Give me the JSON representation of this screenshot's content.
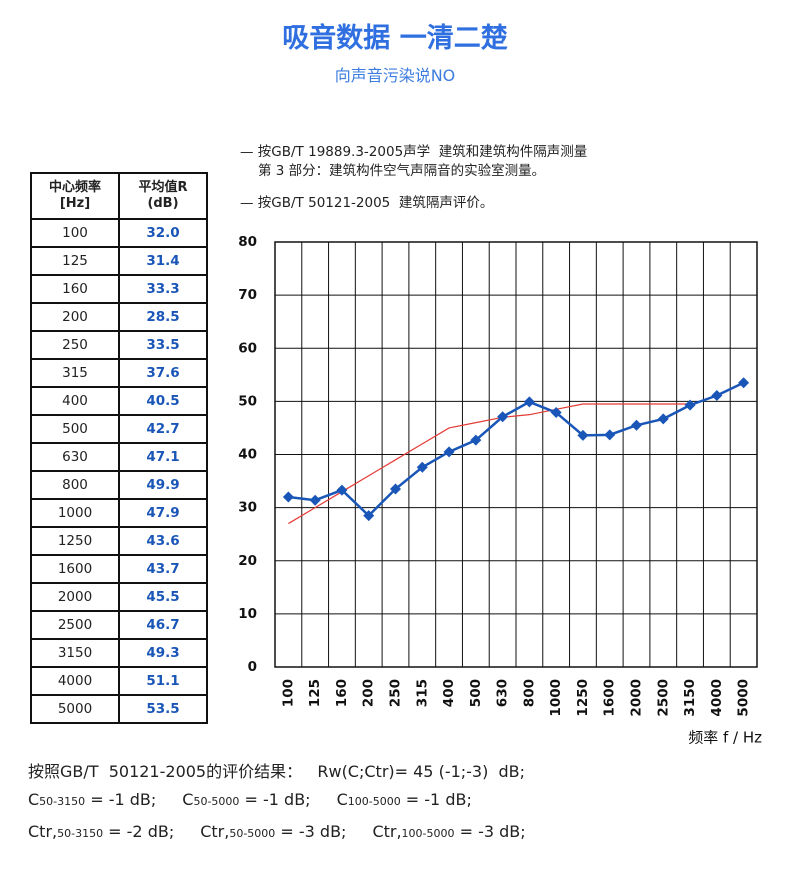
{
  "header": {
    "title": "吸音数据 一清二楚",
    "subtitle": "向声音污染说NO"
  },
  "notes": [
    "— 按GB/T 19889.3-2005声学  建筑和建筑构件隔声测量",
    "第 3 部分：建筑构件空气声隔音的实验室测量。",
    "— 按GB/T 50121-2005  建筑隔声评价。"
  ],
  "table": {
    "headers": [
      "中心频率\n[Hz]",
      "平均值R\n(dB)"
    ],
    "rows": [
      [
        "100",
        "32.0"
      ],
      [
        "125",
        "31.4"
      ],
      [
        "160",
        "33.3"
      ],
      [
        "200",
        "28.5"
      ],
      [
        "250",
        "33.5"
      ],
      [
        "315",
        "37.6"
      ],
      [
        "400",
        "40.5"
      ],
      [
        "500",
        "42.7"
      ],
      [
        "630",
        "47.1"
      ],
      [
        "800",
        "49.9"
      ],
      [
        "1000",
        "47.9"
      ],
      [
        "1250",
        "43.6"
      ],
      [
        "1600",
        "43.7"
      ],
      [
        "2000",
        "45.5"
      ],
      [
        "2500",
        "46.7"
      ],
      [
        "3150",
        "49.3"
      ],
      [
        "4000",
        "51.1"
      ],
      [
        "5000",
        "53.5"
      ]
    ]
  },
  "chart_data": {
    "type": "line",
    "x_label": "频率 f / Hz",
    "categories": [
      "100",
      "125",
      "160",
      "200",
      "250",
      "315",
      "400",
      "500",
      "630",
      "800",
      "1000",
      "1250",
      "1600",
      "2000",
      "2500",
      "3150",
      "4000",
      "5000"
    ],
    "series": [
      {
        "color": "#e53935",
        "marker": false,
        "values": [
          27,
          30,
          33,
          36,
          39,
          42,
          45,
          46,
          47,
          47.5,
          48.5,
          49.5,
          49.5,
          49.5,
          49.5,
          49.5,
          null,
          null
        ]
      },
      {
        "color": "#1a56b8",
        "marker": true,
        "values": [
          32.0,
          31.4,
          33.3,
          28.5,
          33.5,
          37.6,
          40.5,
          42.7,
          47.1,
          49.9,
          47.9,
          43.6,
          43.7,
          45.5,
          46.7,
          49.3,
          51.1,
          53.5
        ]
      }
    ],
    "ylim": [
      0,
      80
    ],
    "yticks": [
      0,
      10,
      20,
      30,
      40,
      50,
      60,
      70,
      80
    ],
    "grid": true
  },
  "results": {
    "summary": "按照GB/T  50121-2005的评价结果：   Rw(C;Ctr)= 45 (-1;-3)  dB;",
    "rows": [
      [
        {
          "main": "C",
          "sub": "50-3150",
          "value": " = -1 dB;"
        },
        {
          "main": "C",
          "sub": "50-5000",
          "value": " = -1 dB;"
        },
        {
          "main": "C",
          "sub": "100-5000",
          "value": " = -1 dB;"
        }
      ],
      [
        {
          "main": "Ctr,",
          "sub": "50-3150",
          "value": " = -2 dB;"
        },
        {
          "main": "Ctr,",
          "sub": "50-5000",
          "value": " = -3 dB;"
        },
        {
          "main": "Ctr,",
          "sub": "100-5000",
          "value": " = -3 dB;"
        }
      ]
    ]
  }
}
